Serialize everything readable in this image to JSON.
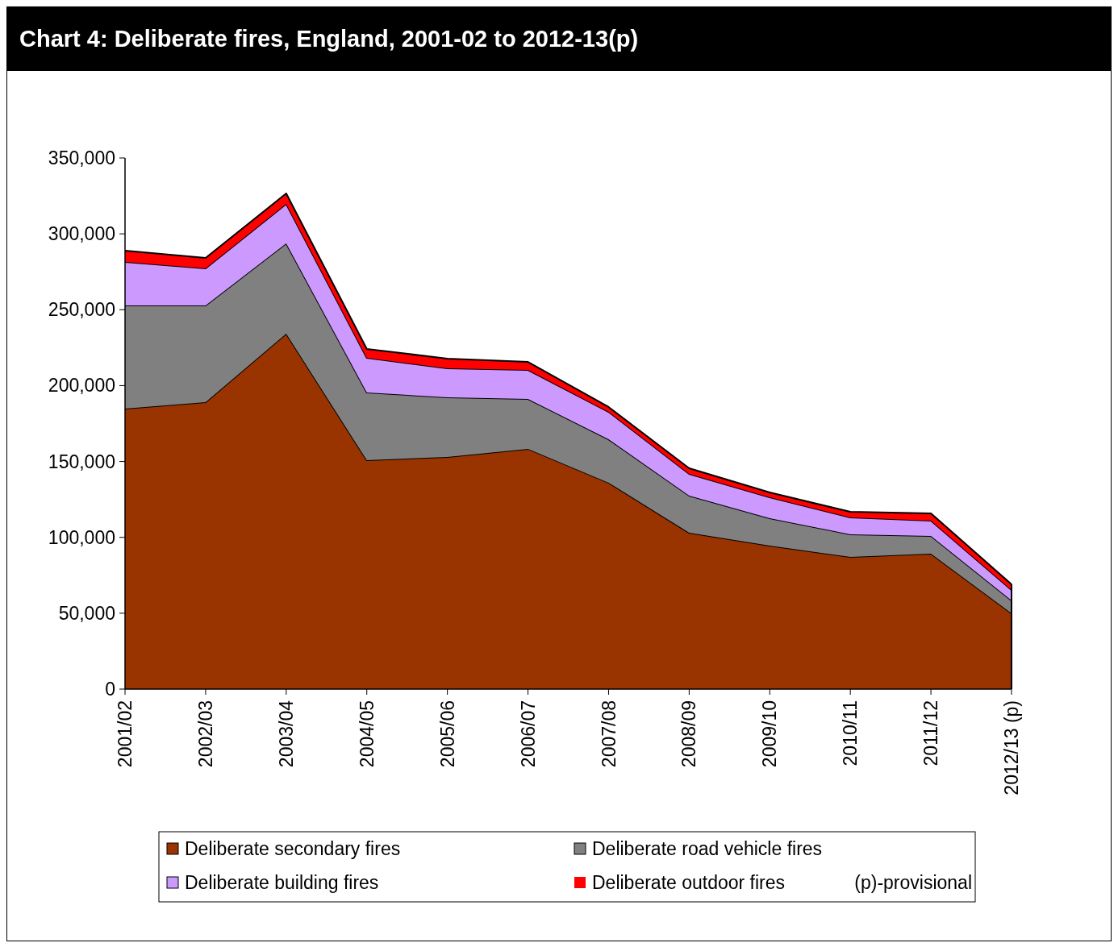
{
  "chart_data": {
    "type": "area",
    "stacked": true,
    "title": "Chart 4: Deliberate fires, England, 2001-02 to 2012-13(p)",
    "categories": [
      "2001/02",
      "2002/03",
      "2003/04",
      "2004/05",
      "2005/06",
      "2006/07",
      "2007/08",
      "2008/09",
      "2009/10",
      "2010/11",
      "2011/12",
      "2012/13 (p)"
    ],
    "series": [
      {
        "name": "Deliberate secondary fires",
        "color": "#993300",
        "values": [
          184800,
          189100,
          234200,
          150800,
          153000,
          158300,
          136000,
          103000,
          94500,
          87100,
          89200,
          49900
        ]
      },
      {
        "name": "Deliberate road vehicle fires",
        "color": "#808080",
        "values": [
          68000,
          63700,
          59500,
          44600,
          39300,
          32900,
          28600,
          24500,
          18100,
          14900,
          11700,
          8500
        ]
      },
      {
        "name": "Deliberate building fires",
        "color": "#cc99ff",
        "values": [
          28700,
          24400,
          26000,
          22900,
          19100,
          19100,
          18100,
          14300,
          13800,
          11100,
          10100,
          6900
        ]
      },
      {
        "name": "Deliberate outdoor fires",
        "color": "#ff0000",
        "values": [
          7400,
          6900,
          6900,
          5800,
          6400,
          5300,
          3200,
          3700,
          3200,
          3700,
          4800,
          3700
        ]
      }
    ],
    "ylim": [
      0,
      350000
    ],
    "yticks": [
      {
        "value": 0,
        "label": "0"
      },
      {
        "value": 50000,
        "label": "50,000"
      },
      {
        "value": 100000,
        "label": "100,000"
      },
      {
        "value": 150000,
        "label": "150,000"
      },
      {
        "value": 200000,
        "label": "200,000"
      },
      {
        "value": 250000,
        "label": "250,000"
      },
      {
        "value": 300000,
        "label": "300,000"
      },
      {
        "value": 350000,
        "label": "350,000"
      }
    ],
    "grid": false,
    "legend": "bottom",
    "annotations": [
      "(p)-provisional"
    ]
  }
}
